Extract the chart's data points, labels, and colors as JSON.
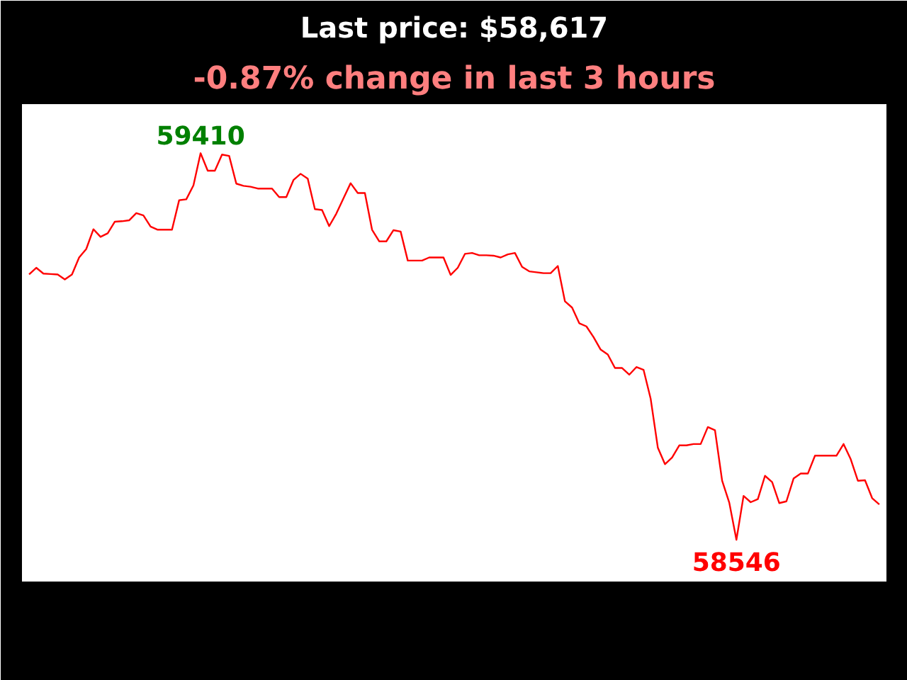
{
  "chart_data": {
    "type": "line",
    "title": "Last price: $58,617",
    "subtitle": "-0.87% change in last 3 hours",
    "categories": [
      null,
      null,
      null,
      null,
      null,
      null,
      null,
      null,
      null,
      null,
      null,
      null,
      null,
      null,
      null,
      null,
      null,
      null,
      null,
      null,
      null,
      null,
      null,
      null,
      null,
      null,
      null,
      null,
      null,
      null,
      null,
      null,
      null,
      null,
      null,
      null,
      null,
      null,
      null,
      null,
      null,
      null,
      null,
      null,
      null,
      null,
      null,
      null,
      null,
      null,
      null,
      null,
      null,
      null,
      null,
      null,
      null,
      null,
      null,
      null,
      null,
      null,
      null,
      null,
      null,
      null,
      null,
      null,
      null,
      null,
      null,
      null,
      null,
      null,
      null,
      null,
      null,
      null,
      null,
      null,
      null,
      null,
      null,
      null,
      null,
      null,
      null,
      null,
      null,
      null,
      null,
      null,
      null,
      null,
      null,
      null,
      null,
      null,
      null,
      null,
      null,
      null,
      null,
      null,
      null,
      null,
      null,
      null,
      null,
      null,
      null,
      null,
      null,
      null,
      null,
      null,
      null,
      null,
      null,
      null
    ],
    "series": [
      {
        "color": "#ff0000",
        "values": [
          59139,
          59154,
          59141,
          59140,
          59139,
          59128,
          59139,
          59177,
          59196,
          59240,
          59223,
          59231,
          59257,
          59258,
          59260,
          59276,
          59271,
          59246,
          59239,
          59239,
          59239,
          59305,
          59307,
          59338,
          59410,
          59371,
          59371,
          59407,
          59404,
          59342,
          59337,
          59335,
          59331,
          59331,
          59331,
          59312,
          59312,
          59350,
          59364,
          59353,
          59285,
          59283,
          59247,
          59275,
          59309,
          59343,
          59321,
          59321,
          59239,
          59213,
          59213,
          59238,
          59235,
          59170,
          59170,
          59170,
          59177,
          59177,
          59177,
          59138,
          59154,
          59185,
          59187,
          59182,
          59182,
          59181,
          59177,
          59184,
          59187,
          59156,
          59146,
          59144,
          59142,
          59142,
          59158,
          59079,
          59065,
          59030,
          59023,
          58999,
          58971,
          58960,
          58930,
          58930,
          58915,
          58932,
          58926,
          58861,
          58752,
          58715,
          58730,
          58757,
          58757,
          58760,
          58760,
          58798,
          58791,
          58678,
          58629,
          58546,
          58644,
          58630,
          58637,
          58689,
          58675,
          58628,
          58632,
          58683,
          58694,
          58694,
          58734,
          58734,
          58734,
          58734,
          58760,
          58726,
          58678,
          58679,
          58639,
          58625
        ],
        "value_labels": [
          null,
          null,
          null,
          null,
          null,
          null,
          null,
          null,
          null,
          null,
          null,
          null,
          null,
          null,
          null,
          null,
          null,
          null,
          null,
          null,
          null,
          null,
          null,
          null,
          "59410",
          null,
          null,
          null,
          null,
          null,
          null,
          null,
          null,
          null,
          null,
          null,
          null,
          null,
          null,
          null,
          null,
          null,
          null,
          null,
          null,
          null,
          null,
          null,
          null,
          null,
          null,
          null,
          null,
          null,
          null,
          null,
          null,
          null,
          null,
          null,
          null,
          null,
          null,
          null,
          null,
          null,
          null,
          null,
          null,
          null,
          null,
          null,
          null,
          null,
          null,
          null,
          null,
          null,
          null,
          null,
          null,
          null,
          null,
          null,
          null,
          null,
          null,
          null,
          null,
          null,
          null,
          null,
          null,
          null,
          null,
          null,
          null,
          null,
          null,
          "58546",
          null,
          null,
          null,
          null,
          null,
          null,
          null,
          null,
          null,
          null,
          null,
          null,
          null,
          null,
          null,
          null,
          null,
          null,
          null,
          null
        ]
      }
    ],
    "line_style": "solid",
    "marker": "none",
    "grid": false,
    "tick_labels": false
  }
}
